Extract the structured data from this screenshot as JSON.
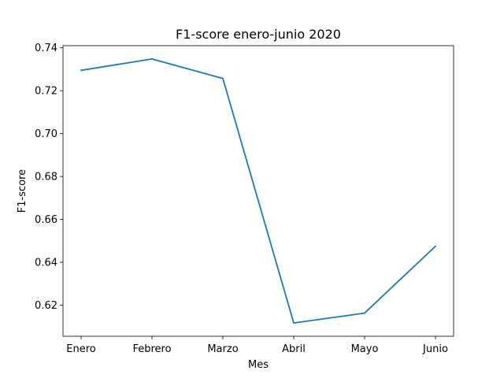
{
  "chart_data": {
    "type": "line",
    "title": "F1-score enero-junio 2020",
    "xlabel": "Mes",
    "ylabel": "F1-score",
    "categories": [
      "Enero",
      "Febrero",
      "Marzo",
      "Abril",
      "Mayo",
      "Junio"
    ],
    "series": [
      {
        "values": [
          0.7295,
          0.7348,
          0.7257,
          0.6117,
          0.6163,
          0.6475
        ],
        "color": "#1f77b4"
      }
    ],
    "ylim": [
      0.6055,
      0.741
    ],
    "yticks": [
      0.62,
      0.64,
      0.66,
      0.68,
      0.7,
      0.72,
      0.74
    ],
    "ytick_labels": [
      "0.62",
      "0.64",
      "0.66",
      "0.68",
      "0.70",
      "0.72",
      "0.74"
    ],
    "grid": false,
    "legend": "none"
  }
}
